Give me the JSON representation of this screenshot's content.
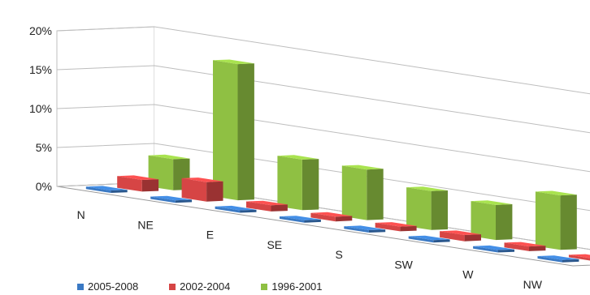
{
  "chart_data": {
    "type": "bar",
    "categories": [
      "N",
      "NE",
      "E",
      "SE",
      "S",
      "SW",
      "W",
      "NW"
    ],
    "series": [
      {
        "name": "2005-2008",
        "color": "#3a79c4",
        "values": [
          0.3,
          0.3,
          0.3,
          0.3,
          0.3,
          0.3,
          0.3,
          0.3
        ]
      },
      {
        "name": "2002-2004",
        "color": "#d64545",
        "values": [
          1.5,
          2.5,
          0.8,
          0.6,
          0.6,
          0.8,
          0.6,
          0.3
        ]
      },
      {
        "name": "1996-2001",
        "color": "#8fc043",
        "values": [
          4.0,
          17.5,
          6.5,
          6.5,
          5.0,
          4.5,
          7.0,
          7.0
        ]
      }
    ],
    "yticks": [
      "0%",
      "5%",
      "10%",
      "15%",
      "20%"
    ],
    "ylim": [
      0,
      20
    ],
    "title": "",
    "xlabel": "",
    "ylabel": "",
    "grid": true,
    "legend_position": "bottom"
  }
}
